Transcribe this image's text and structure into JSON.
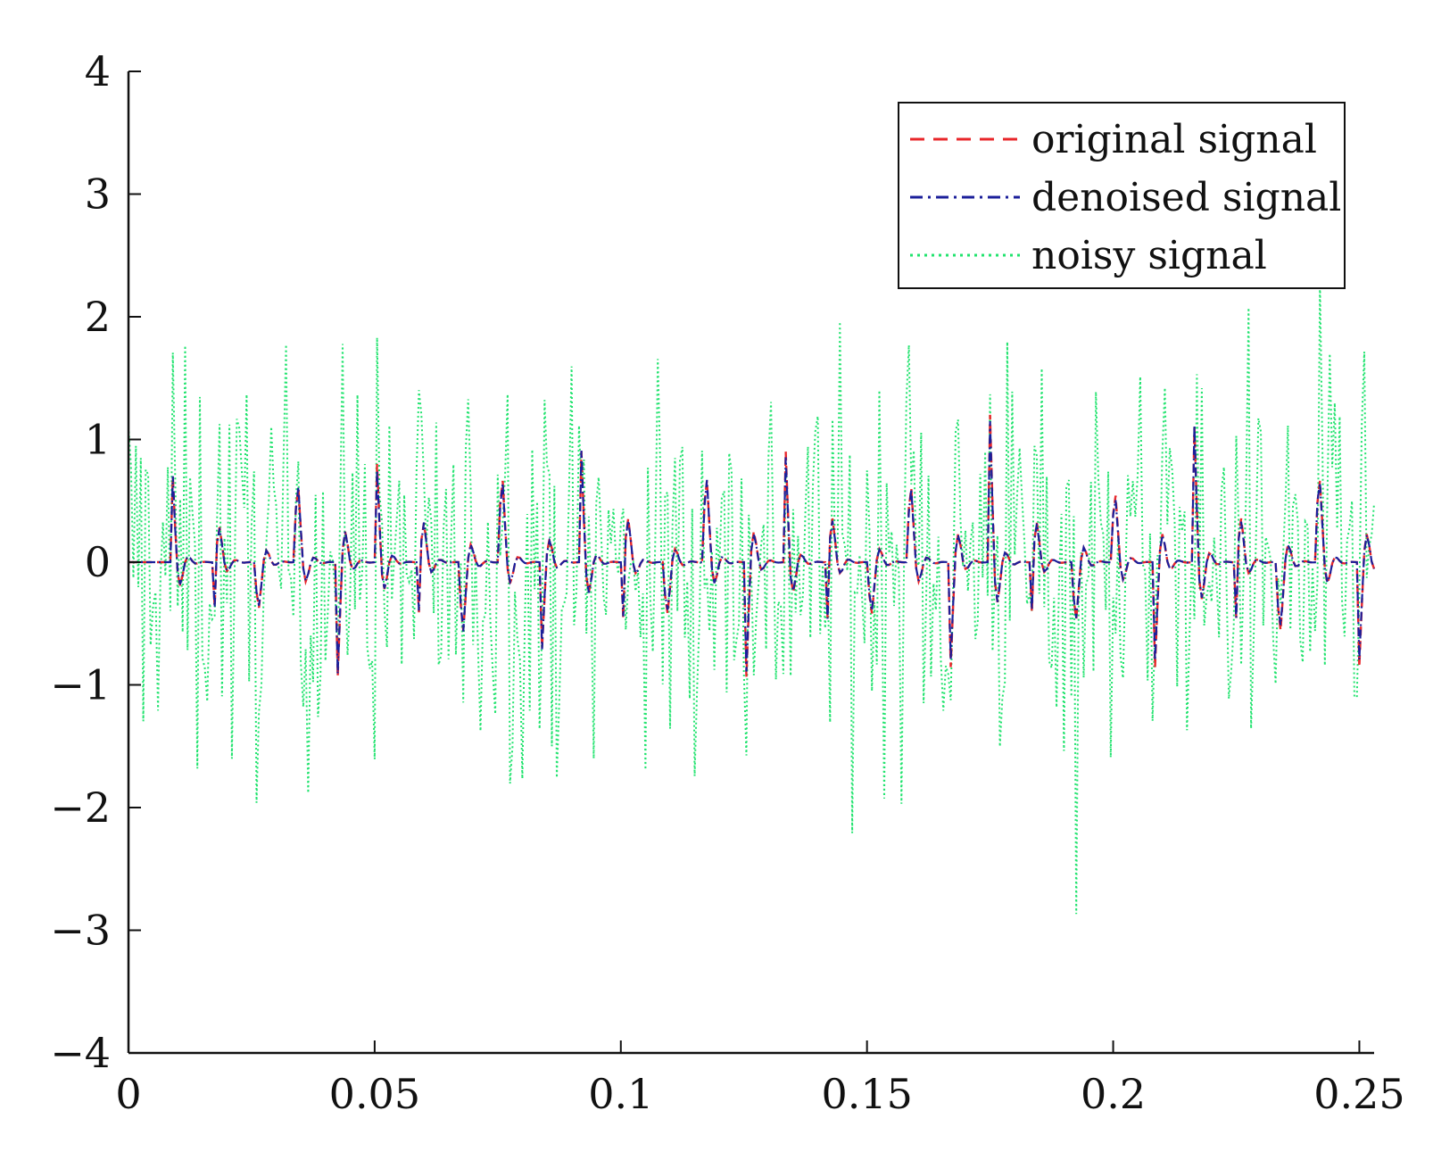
{
  "chart_data": {
    "type": "line",
    "title": "",
    "xlabel": "",
    "ylabel": "",
    "xlim": [
      0,
      0.253
    ],
    "ylim": [
      -4,
      4
    ],
    "x_ticks": [
      0,
      0.05,
      0.1,
      0.15,
      0.2,
      0.25
    ],
    "x_tick_labels": [
      "0",
      "0.05",
      "0.1",
      "0.15",
      "0.2",
      "0.25"
    ],
    "y_ticks": [
      4,
      3,
      2,
      1,
      0,
      -1,
      -2,
      -3,
      -4
    ],
    "y_tick_labels": [
      "4",
      "3",
      "2",
      "1",
      "0",
      "−1",
      "−2",
      "−3",
      "−4"
    ],
    "grid": false,
    "legend_position": "top-right",
    "sample_interval": 0.0005,
    "impulse_period": 0.0083,
    "impulse_amplitudes": [
      0.7,
      0.8,
      0.8,
      1.0,
      1.2,
      0.8,
      0.9,
      1.2,
      1.1,
      0.9,
      0.9,
      1.0,
      0.9,
      1.1,
      1.2,
      0.9,
      1.0,
      0.9,
      1.0,
      1.1,
      1.2,
      0.9,
      1.0,
      0.9,
      1.1,
      1.1,
      1.0,
      1.2,
      1.1,
      1.1,
      0.9
    ],
    "impulse_decay": 0.0012,
    "carrier_frequency": 1700,
    "noise_amplitude": 2.2,
    "series": [
      {
        "name": "original signal",
        "color": "#e8262a",
        "style": "dashed"
      },
      {
        "name": "denoised signal",
        "color": "#1b1f9a",
        "style": "dashdot"
      },
      {
        "name": "noisy signal",
        "color": "#21e36e",
        "style": "dotted"
      }
    ]
  }
}
